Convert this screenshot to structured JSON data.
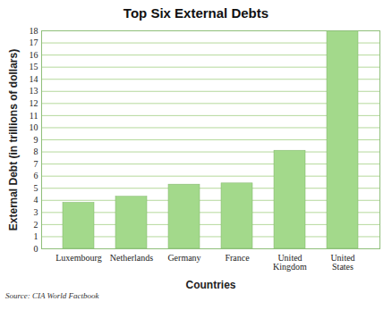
{
  "chart_data": {
    "type": "bar",
    "title": "Top Six External Debts",
    "x_label": "Countries",
    "y_label": "External Debt (in trillions of dollars)",
    "source": "Source: CIA World Factbook",
    "categories": [
      "Luxembourg",
      "Netherlands",
      "Germany",
      "France",
      "United Kingdom",
      "United States"
    ],
    "values": [
      3.8,
      4.3,
      5.3,
      5.4,
      8.1,
      18
    ],
    "color": "#a3d98b",
    "ylim": [
      0,
      18
    ],
    "yticks": [
      0,
      1,
      2,
      3,
      4,
      5,
      6,
      7,
      8,
      9,
      10,
      11,
      12,
      13,
      14,
      15,
      16,
      17,
      18
    ],
    "grid": true
  }
}
